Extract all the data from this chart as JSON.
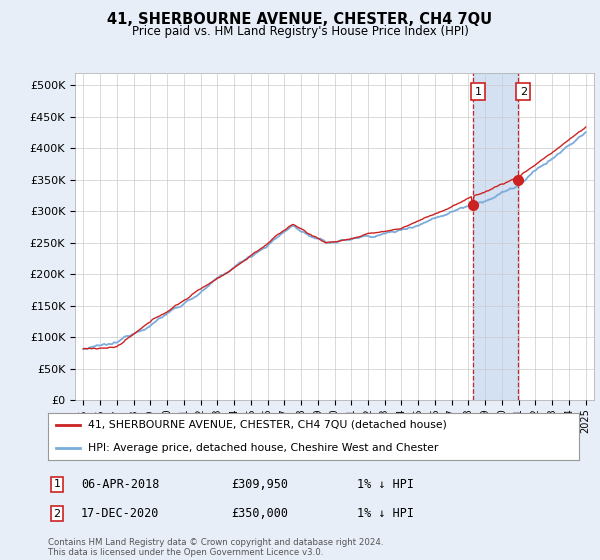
{
  "title": "41, SHERBOURNE AVENUE, CHESTER, CH4 7QU",
  "subtitle": "Price paid vs. HM Land Registry's House Price Index (HPI)",
  "yticks": [
    0,
    50000,
    100000,
    150000,
    200000,
    250000,
    300000,
    350000,
    400000,
    450000,
    500000
  ],
  "ylim": [
    0,
    520000
  ],
  "xlim_start": 1994.5,
  "xlim_end": 2025.5,
  "xticks": [
    1995,
    1996,
    1997,
    1998,
    1999,
    2000,
    2001,
    2002,
    2003,
    2004,
    2005,
    2006,
    2007,
    2008,
    2009,
    2010,
    2011,
    2012,
    2013,
    2014,
    2015,
    2016,
    2017,
    2018,
    2019,
    2020,
    2021,
    2022,
    2023,
    2024,
    2025
  ],
  "hpi_color": "#7aacdc",
  "price_color": "#cc2222",
  "dashed_color": "#cc2222",
  "bg_color": "#e8eef8",
  "plot_bg": "#ffffff",
  "span_color": "#ccdcf0",
  "legend_label_price": "41, SHERBOURNE AVENUE, CHESTER, CH4 7QU (detached house)",
  "legend_label_hpi": "HPI: Average price, detached house, Cheshire West and Chester",
  "marker1_date": 2018.26,
  "marker1_price": 309950,
  "marker1_label": "1",
  "marker1_text": "06-APR-2018",
  "marker1_price_text": "£309,950",
  "marker1_rel": "1% ↓ HPI",
  "marker2_date": 2020.96,
  "marker2_price": 350000,
  "marker2_label": "2",
  "marker2_text": "17-DEC-2020",
  "marker2_price_text": "£350,000",
  "marker2_rel": "1% ↓ HPI",
  "footnote": "Contains HM Land Registry data © Crown copyright and database right 2024.\nThis data is licensed under the Open Government Licence v3.0.",
  "grid_color": "#cccccc"
}
